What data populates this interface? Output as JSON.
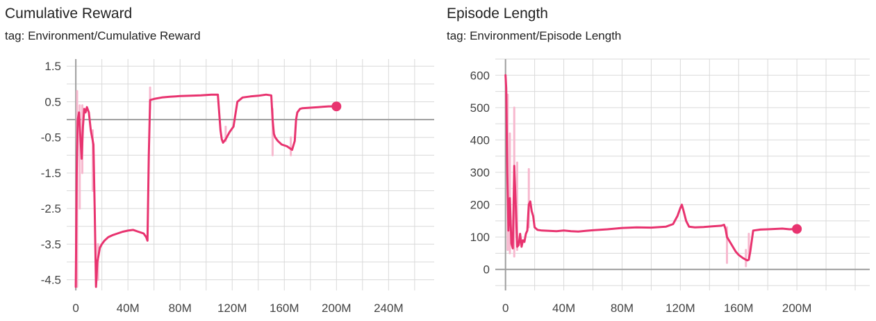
{
  "colors": {
    "series": "#e8336f",
    "raw": "#f7b9cf",
    "grid": "#d9d9d9",
    "axis": "#9e9e9e"
  },
  "charts": [
    {
      "title": "Cumulative Reward",
      "tag": "tag: Environment/Cumulative Reward"
    },
    {
      "title": "Episode Length",
      "tag": "tag: Environment/Episode Length"
    }
  ],
  "chart_data": [
    {
      "type": "line",
      "title": "Cumulative Reward",
      "subtitle": "tag: Environment/Cumulative Reward",
      "xlim": [
        -7,
        275
      ],
      "ylim": [
        -4.8,
        1.7
      ],
      "x_ticks": [
        0,
        40,
        80,
        120,
        160,
        200,
        240
      ],
      "x_tick_labels": [
        "0",
        "40M",
        "80M",
        "120M",
        "160M",
        "200M",
        "240M"
      ],
      "y_ticks": [
        1.5,
        0.5,
        -0.5,
        -1.5,
        -2.5,
        -3.5,
        -4.5
      ],
      "y_tick_labels": [
        "1.5",
        "0.5",
        "-0.5",
        "-1.5",
        "-2.5",
        "-3.5",
        "-4.5"
      ],
      "grid": true,
      "series": [
        {
          "x": [
            0,
            0.7,
            1.5,
            2.5,
            3.5,
            4.5,
            5.5,
            6.5,
            7.5,
            8.5,
            10,
            11.5,
            12.5,
            13.5,
            14.5,
            15.5,
            16.5,
            17.5,
            18.5,
            20,
            22,
            25,
            28,
            32,
            36,
            40,
            44,
            48,
            52,
            54,
            55,
            56,
            57,
            60,
            66,
            72,
            80,
            88,
            96,
            104,
            108,
            109,
            110,
            111,
            112,
            113,
            115,
            118,
            121,
            124,
            128,
            134,
            140,
            146,
            150,
            151,
            152,
            153,
            155,
            158,
            162,
            166,
            168,
            169,
            170,
            171,
            172,
            174,
            178,
            182,
            186,
            190,
            194,
            198,
            200
          ],
          "values": [
            -4.7,
            -1.5,
            0.0,
            0.2,
            -0.5,
            -1.1,
            -0.2,
            0.3,
            0.2,
            0.35,
            0.2,
            -0.3,
            -0.5,
            -0.7,
            -2.5,
            -4.7,
            -4.0,
            -3.8,
            -3.6,
            -3.5,
            -3.4,
            -3.3,
            -3.25,
            -3.2,
            -3.15,
            -3.12,
            -3.1,
            -3.15,
            -3.2,
            -3.3,
            -3.4,
            -1.0,
            0.55,
            0.58,
            0.62,
            0.64,
            0.66,
            0.67,
            0.68,
            0.7,
            0.7,
            0.7,
            0.2,
            -0.3,
            -0.55,
            -0.65,
            -0.55,
            -0.35,
            -0.2,
            0.5,
            0.62,
            0.65,
            0.67,
            0.7,
            0.68,
            0.0,
            -0.4,
            -0.5,
            -0.6,
            -0.7,
            -0.75,
            -0.85,
            -0.6,
            0.0,
            0.2,
            0.25,
            0.3,
            0.32,
            0.33,
            0.34,
            0.35,
            0.36,
            0.37,
            0.37,
            0.37
          ]
        }
      ],
      "raw_spikes": [
        {
          "x": 1,
          "y0": -4.7,
          "y1": 0.8
        },
        {
          "x": 3,
          "y0": -2.5,
          "y1": 0.4
        },
        {
          "x": 5,
          "y0": -1.5,
          "y1": 0.4
        },
        {
          "x": 13,
          "y0": -2.0,
          "y1": -0.3
        },
        {
          "x": 17,
          "y0": -4.5,
          "y1": -3.5
        },
        {
          "x": 57,
          "y0": 0.3,
          "y1": 0.9
        },
        {
          "x": 115,
          "y0": -0.6,
          "y1": -0.2
        },
        {
          "x": 151,
          "y0": -1.0,
          "y1": 0.3
        },
        {
          "x": 165,
          "y0": -1.0,
          "y1": -0.5
        }
      ],
      "end_marker": {
        "x": 200,
        "y": 0.37
      }
    },
    {
      "type": "line",
      "title": "Episode Length",
      "subtitle": "tag: Environment/Episode Length",
      "xlim": [
        -7,
        250
      ],
      "ylim": [
        -65,
        650
      ],
      "x_ticks": [
        0,
        40,
        80,
        120,
        160,
        200
      ],
      "x_tick_labels": [
        "0",
        "40M",
        "80M",
        "120M",
        "160M",
        "200M"
      ],
      "y_ticks": [
        600,
        500,
        400,
        300,
        200,
        100,
        0
      ],
      "y_tick_labels": [
        "600",
        "500",
        "400",
        "300",
        "200",
        "100",
        "0"
      ],
      "grid": true,
      "series": [
        {
          "x": [
            0,
            0.5,
            1.2,
            2,
            3,
            4,
            5,
            6,
            7,
            8,
            9,
            10,
            11,
            12,
            13,
            14,
            15,
            16,
            17,
            18,
            19,
            20,
            22,
            25,
            30,
            35,
            40,
            45,
            50,
            55,
            60,
            70,
            80,
            90,
            100,
            110,
            115,
            118,
            120,
            121,
            122,
            124,
            126,
            130,
            136,
            142,
            148,
            150,
            151,
            152,
            154,
            156,
            158,
            160,
            163,
            165,
            166,
            167,
            168,
            170,
            175,
            180,
            185,
            190,
            195,
            200
          ],
          "values": [
            600,
            560,
            300,
            120,
            220,
            80,
            65,
            320,
            200,
            70,
            75,
            110,
            70,
            90,
            85,
            110,
            120,
            200,
            210,
            180,
            165,
            130,
            122,
            120,
            119,
            118,
            120,
            118,
            117,
            119,
            121,
            124,
            128,
            130,
            129,
            132,
            140,
            165,
            190,
            200,
            185,
            150,
            132,
            130,
            131,
            133,
            135,
            138,
            125,
            100,
            85,
            70,
            55,
            45,
            35,
            30,
            28,
            30,
            55,
            120,
            123,
            124,
            125,
            126,
            124,
            125
          ]
        }
      ],
      "raw_spikes": [
        {
          "x": 1.5,
          "y0": 60,
          "y1": 540
        },
        {
          "x": 3,
          "y0": 50,
          "y1": 420
        },
        {
          "x": 6,
          "y0": 40,
          "y1": 500
        },
        {
          "x": 8,
          "y0": 60,
          "y1": 330
        },
        {
          "x": 16,
          "y0": 130,
          "y1": 310
        },
        {
          "x": 152,
          "y0": 20,
          "y1": 130
        },
        {
          "x": 165,
          "y0": 10,
          "y1": 60
        },
        {
          "x": 167,
          "y0": 30,
          "y1": 110
        }
      ],
      "end_marker": {
        "x": 200,
        "y": 125
      }
    }
  ]
}
